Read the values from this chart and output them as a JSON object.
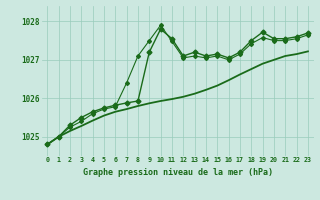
{
  "background_color": "#cce8e0",
  "grid_color": "#99ccbb",
  "line_color": "#1a6b1a",
  "title": "Graphe pression niveau de la mer (hPa)",
  "x_labels": [
    "0",
    "1",
    "2",
    "3",
    "4",
    "5",
    "6",
    "7",
    "8",
    "9",
    "10",
    "11",
    "12",
    "13",
    "14",
    "15",
    "16",
    "17",
    "18",
    "19",
    "20",
    "21",
    "22",
    "23"
  ],
  "ylim": [
    1024.5,
    1028.4
  ],
  "yticks": [
    1025,
    1026,
    1027,
    1028
  ],
  "series": [
    {
      "x": [
        0,
        1,
        2,
        3,
        4,
        5,
        6,
        7,
        8,
        9,
        10,
        11,
        12,
        13,
        14,
        15,
        16,
        17,
        18,
        19,
        20,
        21,
        22,
        23
      ],
      "y": [
        1024.8,
        1025.0,
        1025.3,
        1025.5,
        1025.65,
        1025.75,
        1025.82,
        1025.88,
        1025.93,
        1027.2,
        1027.8,
        1027.55,
        1027.1,
        1027.2,
        1027.1,
        1027.15,
        1027.05,
        1027.2,
        1027.5,
        1027.72,
        1027.55,
        1027.55,
        1027.6,
        1027.7
      ],
      "marker": "D",
      "markersize": 2.5,
      "linewidth": 1.0
    },
    {
      "x": [
        0,
        1,
        2,
        3,
        4,
        5,
        6,
        7,
        8,
        9,
        10,
        11,
        12,
        13,
        14,
        15,
        16,
        17,
        18,
        19,
        20,
        21,
        22,
        23
      ],
      "y": [
        1024.8,
        1025.0,
        1025.25,
        1025.4,
        1025.6,
        1025.72,
        1025.78,
        1026.4,
        1027.1,
        1027.5,
        1027.9,
        1027.48,
        1027.05,
        1027.1,
        1027.05,
        1027.1,
        1027.0,
        1027.15,
        1027.42,
        1027.58,
        1027.5,
        1027.5,
        1027.55,
        1027.65
      ],
      "marker": "D",
      "markersize": 2.0,
      "linewidth": 0.8
    },
    {
      "x": [
        0,
        1,
        2,
        3,
        4,
        5,
        6,
        7,
        8,
        9,
        10,
        11,
        12,
        13,
        14,
        15,
        16,
        17,
        18,
        19,
        20,
        21,
        22,
        23
      ],
      "y": [
        1024.8,
        1025.0,
        1025.15,
        1025.28,
        1025.42,
        1025.55,
        1025.65,
        1025.72,
        1025.8,
        1025.87,
        1025.93,
        1025.98,
        1026.04,
        1026.12,
        1026.22,
        1026.33,
        1026.47,
        1026.62,
        1026.76,
        1026.9,
        1027.0,
        1027.1,
        1027.15,
        1027.22
      ],
      "marker": "None",
      "markersize": 0,
      "linewidth": 1.3
    }
  ]
}
